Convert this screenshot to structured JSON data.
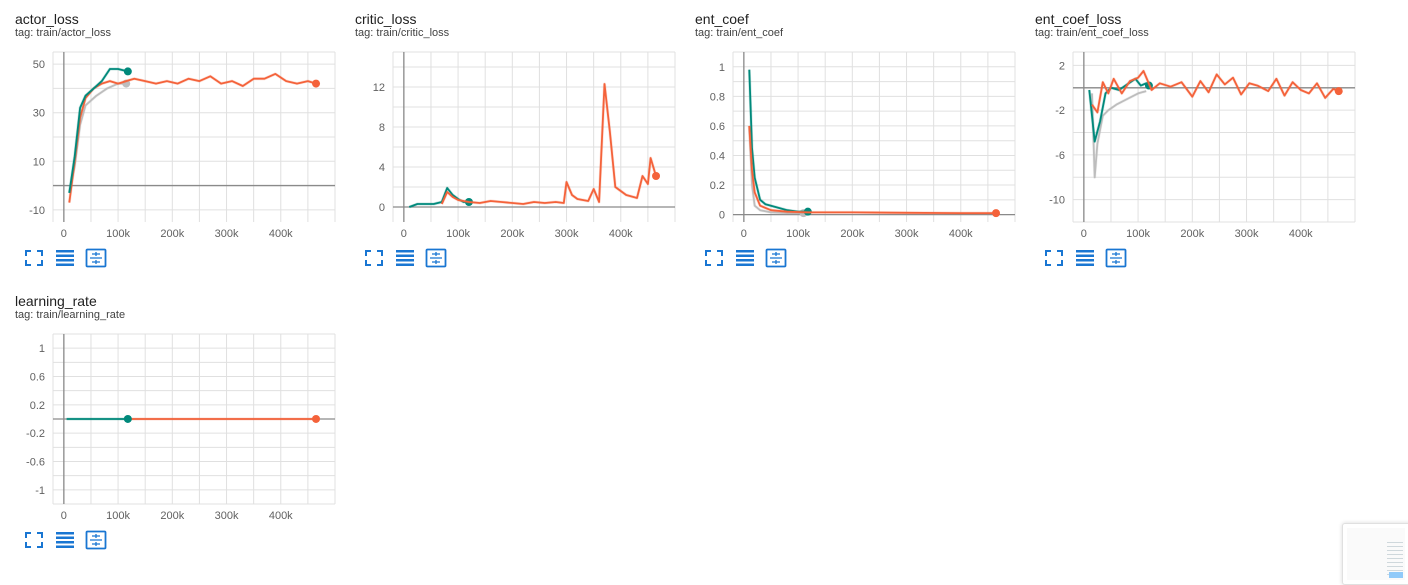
{
  "icons": [
    "fullscreen-icon",
    "data-table-icon",
    "fit-domain-icon"
  ],
  "colors": {
    "orange_run": "#f4623a",
    "teal_run": "#00897b",
    "gray_run": "#bdbdbd",
    "axis": "#757575",
    "grid": "#e0e0e0"
  },
  "chart_data": [
    {
      "type": "line",
      "title": "actor_loss",
      "tag": "tag: train/actor_loss",
      "xlabel": "",
      "ylabel": "",
      "grid": true,
      "xlim": [
        -20000,
        500000
      ],
      "ylim": [
        -15,
        55
      ],
      "x_ticks": [
        0,
        100000,
        200000,
        300000,
        400000
      ],
      "x_tick_labels": [
        "0",
        "100k",
        "200k",
        "300k",
        "400k"
      ],
      "y_ticks": [
        -10,
        10,
        30,
        50
      ],
      "y_tick_labels": [
        "-10",
        "10",
        "30",
        "50"
      ],
      "series": [
        {
          "color": "#bdbdbd",
          "x": [
            10000,
            20000,
            30000,
            40000,
            60000,
            80000,
            100000,
            115000
          ],
          "y": [
            -3,
            8,
            25,
            33,
            37,
            40,
            42,
            42
          ],
          "last_marker": true
        },
        {
          "color": "#f4623a",
          "x": [
            10000,
            20000,
            30000,
            40000,
            55000,
            70000,
            85000,
            100000,
            115000,
            130000,
            150000,
            170000,
            190000,
            210000,
            230000,
            250000,
            270000,
            290000,
            310000,
            330000,
            350000,
            370000,
            390000,
            410000,
            430000,
            450000,
            465000
          ],
          "y": [
            -7,
            10,
            28,
            36,
            40,
            42,
            43,
            42,
            43,
            44,
            43,
            42,
            43,
            42,
            44,
            43,
            45,
            42,
            43,
            41,
            44,
            44,
            46,
            43,
            42,
            43,
            42
          ],
          "last_marker": true
        },
        {
          "color": "#00897b",
          "x": [
            10000,
            20000,
            30000,
            40000,
            55000,
            70000,
            85000,
            100000,
            118000
          ],
          "y": [
            -3,
            12,
            32,
            37,
            40,
            43,
            48,
            48,
            47
          ],
          "last_marker": true
        }
      ]
    },
    {
      "type": "line",
      "title": "critic_loss",
      "tag": "tag: train/critic_loss",
      "xlabel": "",
      "ylabel": "",
      "grid": true,
      "xlim": [
        -20000,
        500000
      ],
      "ylim": [
        -1.5,
        15.5
      ],
      "x_ticks": [
        0,
        100000,
        200000,
        300000,
        400000
      ],
      "x_tick_labels": [
        "0",
        "100k",
        "200k",
        "300k",
        "400k"
      ],
      "y_ticks": [
        0,
        4,
        8,
        12
      ],
      "y_tick_labels": [
        "0",
        "4",
        "8",
        "12"
      ],
      "series": [
        {
          "color": "#00897b",
          "x": [
            10000,
            25000,
            40000,
            55000,
            70000,
            80000,
            90000,
            100000,
            110000,
            120000
          ],
          "y": [
            0,
            0.3,
            0.3,
            0.3,
            0.5,
            1.9,
            1.2,
            0.8,
            0.5,
            0.5
          ],
          "last_marker": true
        },
        {
          "color": "#f4623a",
          "x": [
            70000,
            80000,
            90000,
            100000,
            120000,
            140000,
            160000,
            180000,
            200000,
            220000,
            240000,
            260000,
            280000,
            295000,
            300000,
            310000,
            320000,
            340000,
            350000,
            360000,
            370000,
            380000,
            390000,
            410000,
            430000,
            440000,
            450000,
            455000,
            465000
          ],
          "y": [
            0.3,
            1.5,
            1,
            0.7,
            0.5,
            0.4,
            0.6,
            0.5,
            0.4,
            0.3,
            0.5,
            0.4,
            0.5,
            0.4,
            2.5,
            1.2,
            0.8,
            0.6,
            1.8,
            0.5,
            12.3,
            7.5,
            2,
            1.2,
            0.9,
            3.1,
            2.3,
            4.9,
            3.1
          ],
          "last_marker": true
        }
      ]
    },
    {
      "type": "line",
      "title": "ent_coef",
      "tag": "tag: train/ent_coef",
      "xlabel": "",
      "ylabel": "",
      "grid": true,
      "xlim": [
        -20000,
        500000
      ],
      "ylim": [
        -0.05,
        1.1
      ],
      "x_ticks": [
        0,
        100000,
        200000,
        300000,
        400000
      ],
      "x_tick_labels": [
        "0",
        "100k",
        "200k",
        "300k",
        "400k"
      ],
      "y_ticks": [
        0,
        0.2,
        0.4,
        0.6,
        0.8,
        1
      ],
      "y_tick_labels": [
        "0",
        "0.2",
        "0.4",
        "0.6",
        "0.8",
        "1"
      ],
      "series": [
        {
          "color": "#bdbdbd",
          "x": [
            10000,
            15000,
            20000,
            30000,
            50000,
            80000,
            110000
          ],
          "y": [
            0.6,
            0.2,
            0.06,
            0.03,
            0.015,
            0.01,
            0.01
          ],
          "last_marker": true
        },
        {
          "color": "#00897b",
          "x": [
            10000,
            15000,
            20000,
            30000,
            40000,
            60000,
            80000,
            100000,
            118000
          ],
          "y": [
            0.98,
            0.45,
            0.25,
            0.1,
            0.07,
            0.05,
            0.03,
            0.02,
            0.02
          ],
          "last_marker": true
        },
        {
          "color": "#f4623a",
          "x": [
            10000,
            15000,
            20000,
            30000,
            50000,
            80000,
            120000,
            200000,
            300000,
            400000,
            465000
          ],
          "y": [
            0.6,
            0.3,
            0.15,
            0.06,
            0.03,
            0.02,
            0.015,
            0.015,
            0.012,
            0.01,
            0.01
          ],
          "last_marker": true
        }
      ]
    },
    {
      "type": "line",
      "title": "ent_coef_loss",
      "tag": "tag: train/ent_coef_loss",
      "xlabel": "",
      "ylabel": "",
      "grid": true,
      "xlim": [
        -20000,
        500000
      ],
      "ylim": [
        -12,
        3.2
      ],
      "x_ticks": [
        0,
        100000,
        200000,
        300000,
        400000
      ],
      "x_tick_labels": [
        "0",
        "100k",
        "200k",
        "300k",
        "400k"
      ],
      "y_ticks": [
        -10,
        -6,
        -2,
        2
      ],
      "y_tick_labels": [
        "-10",
        "-6",
        "-2",
        "2"
      ],
      "series": [
        {
          "color": "#bdbdbd",
          "x": [
            15000,
            20000,
            25000,
            35000,
            45000,
            60000,
            80000,
            100000,
            115000
          ],
          "y": [
            -0.5,
            -8,
            -5,
            -2.5,
            -2,
            -1.5,
            -1,
            -0.5,
            -0.3
          ],
          "last_marker": false
        },
        {
          "color": "#00897b",
          "x": [
            10000,
            20000,
            30000,
            40000,
            50000,
            65000,
            80000,
            95000,
            105000,
            115000,
            120000
          ],
          "y": [
            -0.2,
            -4.8,
            -3,
            -0.5,
            0,
            -0.2,
            0.3,
            0.8,
            0.2,
            0.4,
            0.2
          ],
          "last_marker": true
        },
        {
          "color": "#f4623a",
          "x": [
            15000,
            25000,
            35000,
            45000,
            55000,
            70000,
            85000,
            100000,
            110000,
            125000,
            140000,
            160000,
            180000,
            200000,
            215000,
            230000,
            245000,
            260000,
            275000,
            290000,
            305000,
            320000,
            340000,
            355000,
            370000,
            385000,
            400000,
            415000,
            430000,
            445000,
            460000,
            470000
          ],
          "y": [
            -1.5,
            -2.2,
            0.5,
            -0.5,
            0.8,
            -0.5,
            0.6,
            0.9,
            1.5,
            -0.2,
            0.4,
            0.1,
            0.5,
            -0.8,
            0.6,
            -0.4,
            1.2,
            0.3,
            0.9,
            -0.6,
            0.4,
            0.2,
            -0.3,
            0.8,
            -0.7,
            0.5,
            -0.2,
            -0.5,
            0.4,
            -0.9,
            -0.1,
            -0.3
          ],
          "last_marker": true
        }
      ]
    },
    {
      "type": "line",
      "title": "learning_rate",
      "tag": "tag: train/learning_rate",
      "xlabel": "",
      "ylabel": "",
      "grid": true,
      "xlim": [
        -20000,
        500000
      ],
      "ylim": [
        -1.2,
        1.2
      ],
      "x_ticks": [
        0,
        100000,
        200000,
        300000,
        400000
      ],
      "x_tick_labels": [
        "0",
        "100k",
        "200k",
        "300k",
        "400k"
      ],
      "y_ticks": [
        -1,
        -0.6,
        -0.2,
        0.2,
        0.6,
        1
      ],
      "y_tick_labels": [
        "-1",
        "-0.6",
        "-0.2",
        "0.2",
        "0.6",
        "1"
      ],
      "series": [
        {
          "color": "#f4623a",
          "x": [
            120000,
            465000
          ],
          "y": [
            0.0003,
            0.0003
          ],
          "last_marker": true
        },
        {
          "color": "#00897b",
          "x": [
            5000,
            118000
          ],
          "y": [
            0.0003,
            0.0003
          ],
          "last_marker": true
        }
      ]
    }
  ]
}
